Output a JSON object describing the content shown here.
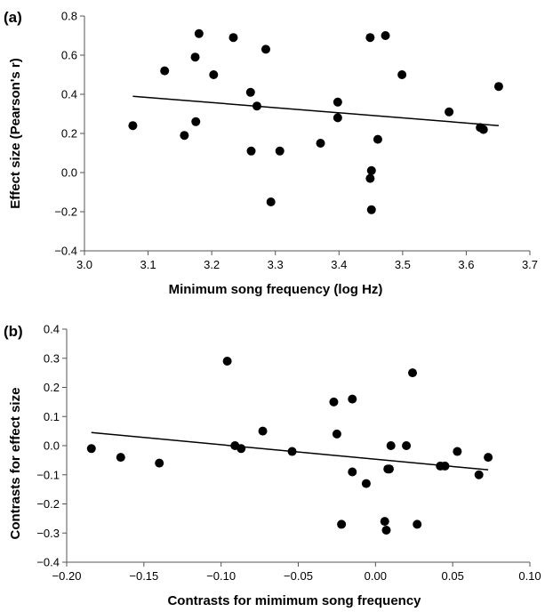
{
  "colors": {
    "marker": "#000000",
    "axis": "#555555",
    "background": "#ffffff"
  },
  "chart_data": [
    {
      "type": "scatter",
      "panel_label": "(a)",
      "xlabel": "Minimum song frequency (log Hz)",
      "ylabel": "Effect size (Pearson's r)",
      "xlim": [
        3.0,
        3.7
      ],
      "ylim": [
        -0.4,
        0.8
      ],
      "xticks": [
        3.0,
        3.1,
        3.2,
        3.3,
        3.4,
        3.5,
        3.6,
        3.7
      ],
      "yticks": [
        -0.4,
        -0.2,
        0.0,
        0.2,
        0.4,
        0.6,
        0.8
      ],
      "xtick_labels": [
        "3.0",
        "3.1",
        "3.2",
        "3.3",
        "3.4",
        "3.5",
        "3.6",
        "3.7"
      ],
      "ytick_labels": [
        "−0.4",
        "−0.2",
        "0.0",
        "0.2",
        "0.4",
        "0.6",
        "0.8"
      ],
      "grid": false,
      "points": [
        {
          "x": 3.076,
          "y": 0.24
        },
        {
          "x": 3.126,
          "y": 0.52
        },
        {
          "x": 3.157,
          "y": 0.19
        },
        {
          "x": 3.174,
          "y": 0.59
        },
        {
          "x": 3.175,
          "y": 0.26
        },
        {
          "x": 3.18,
          "y": 0.71
        },
        {
          "x": 3.203,
          "y": 0.5
        },
        {
          "x": 3.234,
          "y": 0.69
        },
        {
          "x": 3.261,
          "y": 0.41
        },
        {
          "x": 3.262,
          "y": 0.11
        },
        {
          "x": 3.271,
          "y": 0.34
        },
        {
          "x": 3.285,
          "y": 0.63
        },
        {
          "x": 3.293,
          "y": -0.15
        },
        {
          "x": 3.307,
          "y": 0.11
        },
        {
          "x": 3.371,
          "y": 0.15
        },
        {
          "x": 3.398,
          "y": 0.36
        },
        {
          "x": 3.398,
          "y": 0.28
        },
        {
          "x": 3.449,
          "y": 0.69
        },
        {
          "x": 3.449,
          "y": -0.03
        },
        {
          "x": 3.451,
          "y": 0.01
        },
        {
          "x": 3.451,
          "y": -0.19
        },
        {
          "x": 3.461,
          "y": 0.17
        },
        {
          "x": 3.473,
          "y": 0.7
        },
        {
          "x": 3.499,
          "y": 0.5
        },
        {
          "x": 3.573,
          "y": 0.31
        },
        {
          "x": 3.622,
          "y": 0.23
        },
        {
          "x": 3.627,
          "y": 0.22
        },
        {
          "x": 3.651,
          "y": 0.44
        }
      ],
      "trend_line": {
        "x": [
          3.076,
          3.651
        ],
        "y": [
          0.39,
          0.24
        ]
      }
    },
    {
      "type": "scatter",
      "panel_label": "(b)",
      "xlabel": "Contrasts for mimimum song frequency",
      "ylabel": "Contrasts for effect size",
      "xlim": [
        -0.2,
        0.1
      ],
      "ylim": [
        -0.4,
        0.4
      ],
      "xticks": [
        -0.2,
        -0.15,
        -0.1,
        -0.05,
        0.0,
        0.05,
        0.1
      ],
      "yticks": [
        -0.4,
        -0.3,
        -0.2,
        -0.1,
        0.0,
        0.1,
        0.2,
        0.3,
        0.4
      ],
      "xtick_labels": [
        "−0.20",
        "−0.15",
        "−0.10",
        "−0.05",
        "0.00",
        "0.05",
        "0.10"
      ],
      "ytick_labels": [
        "−0.4",
        "−0.3",
        "−0.2",
        "−0.1",
        "0.0",
        "0.1",
        "0.2",
        "0.3",
        "0.4"
      ],
      "grid": false,
      "points": [
        {
          "x": -0.184,
          "y": -0.01
        },
        {
          "x": -0.165,
          "y": -0.04
        },
        {
          "x": -0.14,
          "y": -0.06
        },
        {
          "x": -0.096,
          "y": 0.29
        },
        {
          "x": -0.091,
          "y": 0.0
        },
        {
          "x": -0.087,
          "y": -0.01
        },
        {
          "x": -0.073,
          "y": 0.05
        },
        {
          "x": -0.054,
          "y": -0.02
        },
        {
          "x": -0.027,
          "y": 0.15
        },
        {
          "x": -0.025,
          "y": 0.04
        },
        {
          "x": -0.022,
          "y": -0.27
        },
        {
          "x": -0.015,
          "y": 0.16
        },
        {
          "x": -0.015,
          "y": -0.09
        },
        {
          "x": -0.006,
          "y": -0.13
        },
        {
          "x": 0.006,
          "y": -0.26
        },
        {
          "x": 0.007,
          "y": -0.29
        },
        {
          "x": 0.008,
          "y": -0.08
        },
        {
          "x": 0.009,
          "y": -0.08
        },
        {
          "x": 0.01,
          "y": 0.0
        },
        {
          "x": 0.02,
          "y": 0.0
        },
        {
          "x": 0.024,
          "y": 0.25
        },
        {
          "x": 0.027,
          "y": -0.27
        },
        {
          "x": 0.042,
          "y": -0.07
        },
        {
          "x": 0.045,
          "y": -0.07
        },
        {
          "x": 0.053,
          "y": -0.02
        },
        {
          "x": 0.067,
          "y": -0.1
        },
        {
          "x": 0.073,
          "y": -0.04
        }
      ],
      "trend_line": {
        "x": [
          -0.184,
          0.073
        ],
        "y": [
          0.045,
          -0.083
        ]
      }
    }
  ]
}
